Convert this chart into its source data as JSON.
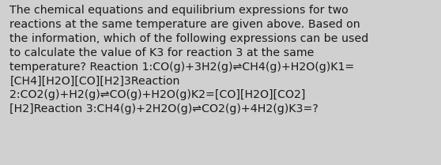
{
  "background_color": "#d0d0d0",
  "text_color": "#1a1a1a",
  "font_size": 10.2,
  "font_family": "DejaVu Sans",
  "text": "The chemical equations and equilibrium expressions for two\nreactions at the same temperature are given above. Based on\nthe information, which of the following expressions can be used\nto calculate the value of K3 for reaction 3 at the same\ntemperature? Reaction 1:CO(g)+3H2(g)⇌CH4(g)+H2O(g)K1=\n[CH4][H2O][CO][H2]3Reaction\n2:CO2(g)+H2(g)⇌CO(g)+H2O(g)K2=[CO][H2O][CO2]\n[H2]Reaction 3:CH4(g)+2H2O(g)⇌CO2(g)+4H2(g)K3=?",
  "fig_width": 5.58,
  "fig_height": 2.09,
  "dpi": 100
}
